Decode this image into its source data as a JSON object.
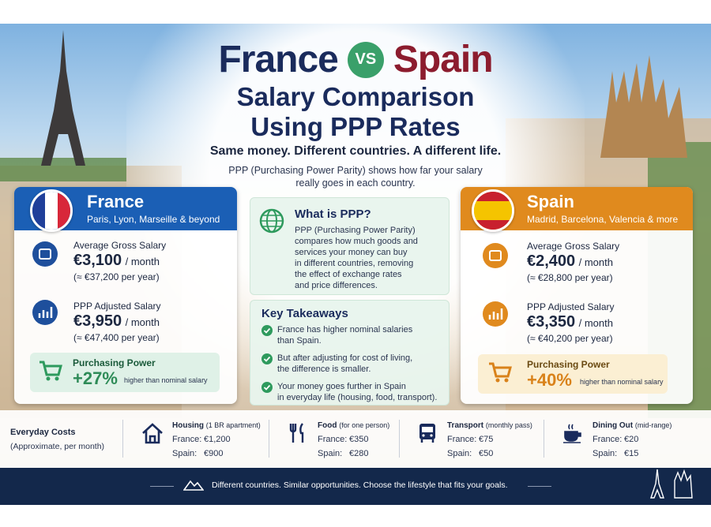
{
  "header": {
    "title_left": "France",
    "vs": "VS",
    "title_right": "Spain",
    "subtitle_lines": [
      "Salary Comparison",
      "Using PPP Rates"
    ],
    "tagline": "Same money. Different countries. A different life.",
    "intro_lines": [
      "PPP (Purchasing Power Parity) shows how far your salary",
      "really goes in each country."
    ]
  },
  "countries": [
    {
      "name": "France",
      "cities": "Paris, Lyon, Marseille & beyond",
      "gross_label": "Average Gross Salary",
      "gross": "€3,100",
      "gross_unit": "/ month",
      "gross_year": "(≈ €37,200 per year)",
      "ppp_label": "PPP Adjusted Salary",
      "ppp": "€3,950",
      "ppp_unit": "/ month",
      "ppp_year": "(≈ €47,400 per year)",
      "power_label": "Purchasing Power",
      "power": "+27%",
      "power_note": "higher than nominal salary"
    },
    {
      "name": "Spain",
      "cities": "Madrid, Barcelona, Valencia & more",
      "gross_label": "Average Gross Salary",
      "gross": "€2,400",
      "gross_unit": "/ month",
      "gross_year": "(≈ €28,800 per year)",
      "ppp_label": "PPP Adjusted Salary",
      "ppp": "€3,350",
      "ppp_unit": "/ month",
      "ppp_year": "(≈ €40,200 per year)",
      "power_label": "Purchasing Power",
      "power": "+40%",
      "power_note": "higher than nominal salary"
    }
  ],
  "ppp_box": {
    "title": "What is PPP?",
    "lines": [
      "PPP (Purchasing Power Parity)",
      "compares how much goods and",
      "services your money can buy",
      "in different countries, removing",
      "the effect of exchange rates",
      "and price differences."
    ]
  },
  "takeaways": {
    "title": "Key Takeaways",
    "items": [
      [
        "France has higher nominal salaries",
        "than Spain."
      ],
      [
        "But after adjusting for cost of living,",
        "the difference is smaller."
      ],
      [
        "Your money goes further in Spain",
        "in everyday life (housing, food, transport)."
      ]
    ]
  },
  "costs": {
    "title": "Everyday Costs",
    "subtitle": "(Approximate, per month)",
    "items": [
      {
        "name": "Housing",
        "note": "(1 BR apartment)",
        "rows": [
          {
            "label": "France:",
            "value": "€1,200"
          },
          {
            "label": "Spain:",
            "value": "€900"
          }
        ]
      },
      {
        "name": "Food",
        "note": "(for one person)",
        "rows": [
          {
            "label": "France:",
            "value": "€350"
          },
          {
            "label": "Spain:",
            "value": "€280"
          }
        ]
      },
      {
        "name": "Transport",
        "note": "(monthly pass)",
        "rows": [
          {
            "label": "France:",
            "value": "€75"
          },
          {
            "label": "Spain:",
            "value": "€50"
          }
        ]
      },
      {
        "name": "Dining Out",
        "note": "(mid-range)",
        "rows": [
          {
            "label": "France:",
            "value": "€20"
          },
          {
            "label": "Spain:",
            "value": "€15"
          }
        ]
      }
    ]
  },
  "footer": "Different countries. Similar opportunities. Choose the lifestyle that fits your goals."
}
